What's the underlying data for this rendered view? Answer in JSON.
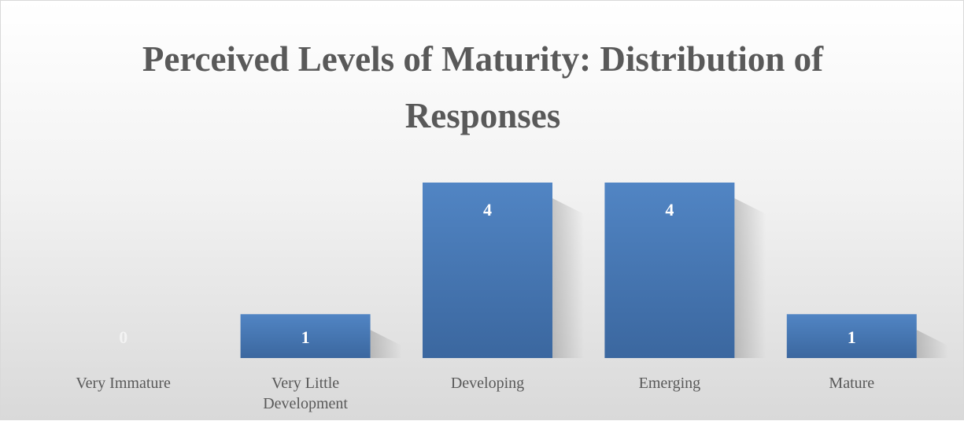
{
  "chart_data": {
    "type": "bar",
    "title": "Perceived Levels of Maturity: Distribution of Responses",
    "categories": [
      "Very Immature",
      "Very Little Development",
      "Developing",
      "Emerging",
      "Mature"
    ],
    "values": [
      0,
      1,
      4,
      4,
      1
    ],
    "color": "#4a7ab8",
    "ylim": [
      0,
      4
    ]
  }
}
